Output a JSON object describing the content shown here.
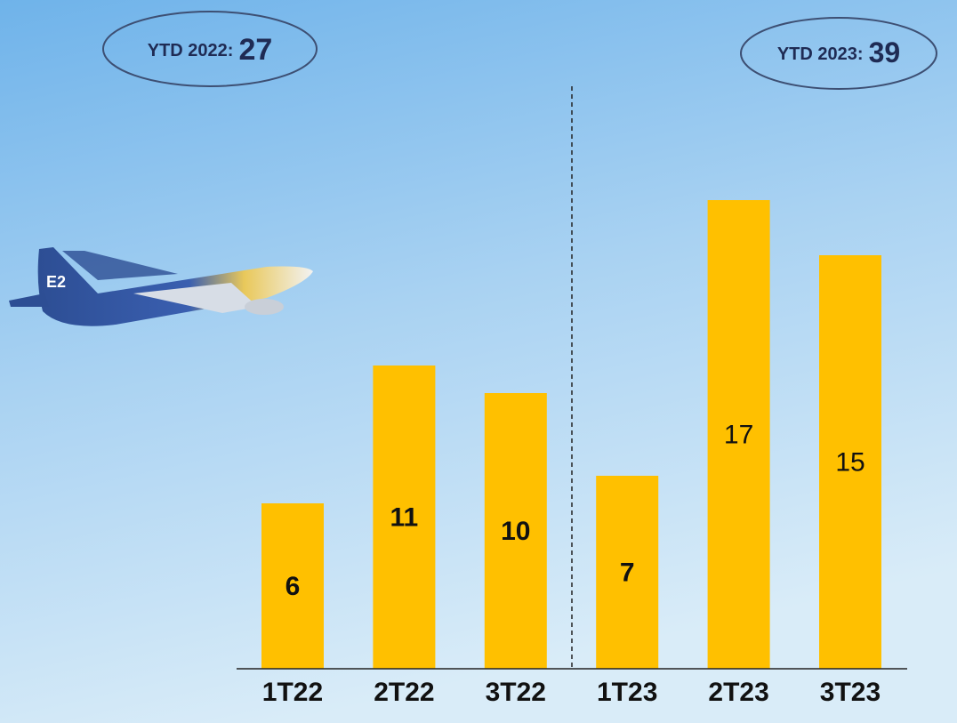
{
  "chart_data": {
    "type": "bar",
    "categories": [
      "1T22",
      "2T22",
      "3T22",
      "1T23",
      "2T23",
      "3T23"
    ],
    "values": [
      6,
      11,
      10,
      7,
      17,
      15
    ],
    "bold_labels": [
      true,
      true,
      true,
      true,
      false,
      false
    ],
    "color": "#ffc000",
    "annotations": [
      {
        "label": "YTD 2022:",
        "value": 27
      },
      {
        "label": "YTD 2023:",
        "value": 39
      }
    ]
  }
}
